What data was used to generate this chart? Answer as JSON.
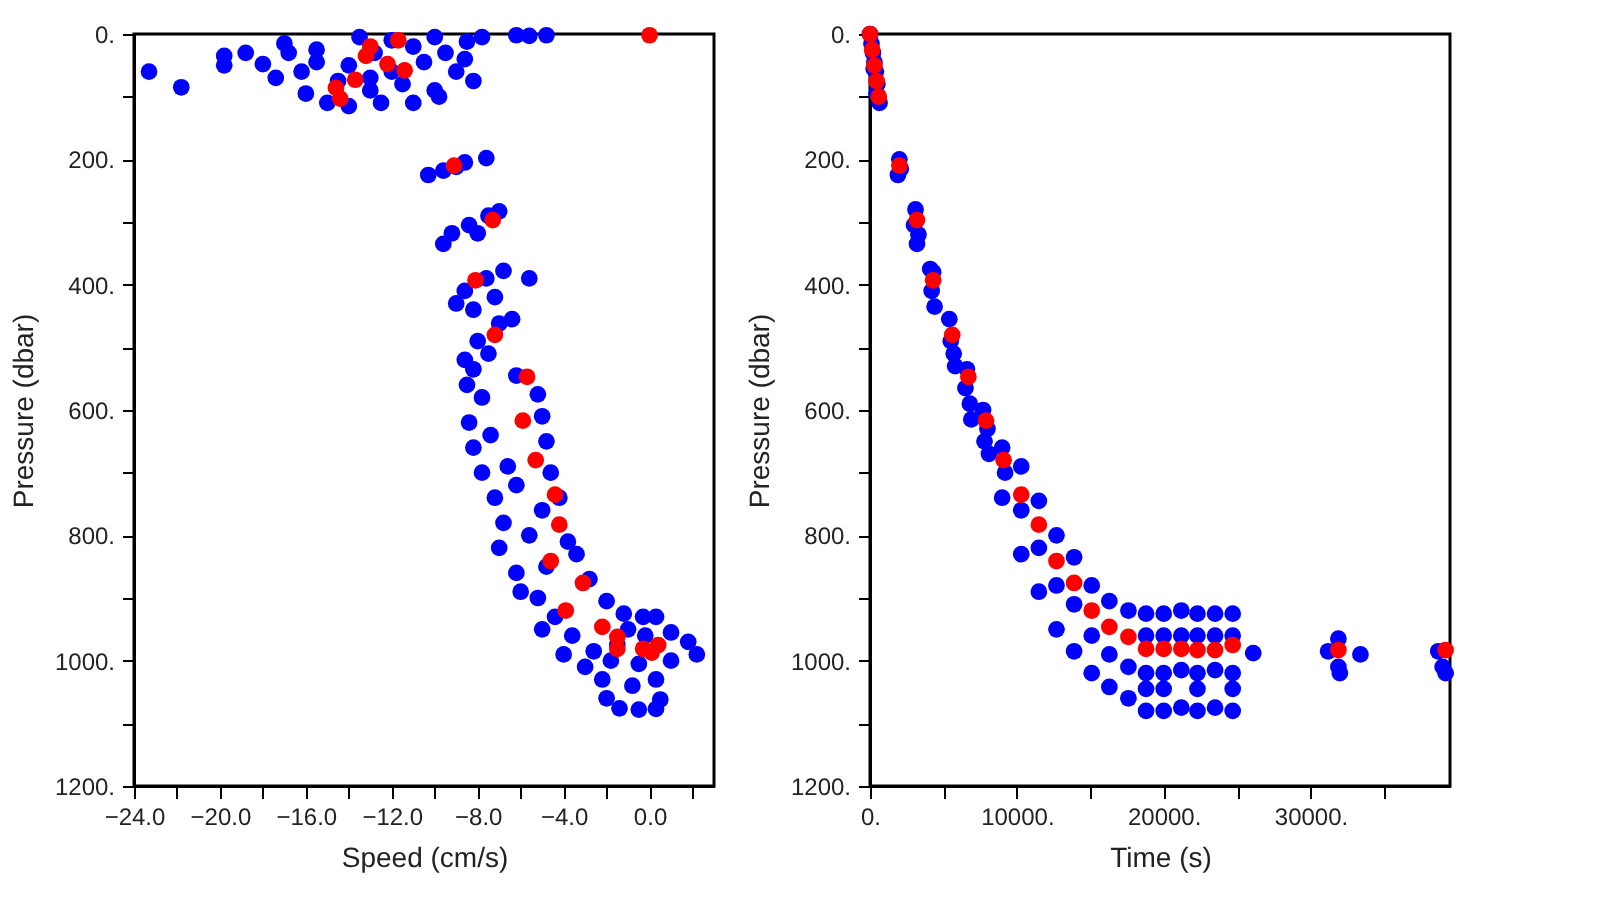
{
  "chart_data": [
    {
      "type": "scatter",
      "xlabel": "Speed (cm/s)",
      "ylabel": "Pressure (dbar)",
      "marker": "circle",
      "xlim": [
        -24,
        3
      ],
      "xticks": [
        {
          "value": -24,
          "label": "−24.0"
        },
        {
          "value": -22,
          "label": null
        },
        {
          "value": -20,
          "label": "−20.0"
        },
        {
          "value": -18,
          "label": null
        },
        {
          "value": -16,
          "label": "−16.0"
        },
        {
          "value": -14,
          "label": null
        },
        {
          "value": -12,
          "label": "−12.0"
        },
        {
          "value": -10,
          "label": null
        },
        {
          "value": -8,
          "label": "−8.0"
        },
        {
          "value": -6,
          "label": null
        },
        {
          "value": -4,
          "label": "−4.0"
        },
        {
          "value": -2,
          "label": null
        },
        {
          "value": 0,
          "label": "0.0"
        },
        {
          "value": 2,
          "label": null
        }
      ],
      "ylim": [
        1200,
        0
      ],
      "yticks": [
        {
          "value": 0,
          "label": "0."
        },
        {
          "value": 100,
          "label": null
        },
        {
          "value": 200,
          "label": "200."
        },
        {
          "value": 300,
          "label": null
        },
        {
          "value": 400,
          "label": "400."
        },
        {
          "value": 500,
          "label": null
        },
        {
          "value": 600,
          "label": "600."
        },
        {
          "value": 700,
          "label": null
        },
        {
          "value": 800,
          "label": "800."
        },
        {
          "value": 900,
          "label": null
        },
        {
          "value": 1000,
          "label": "1000."
        },
        {
          "value": 1100,
          "label": null
        },
        {
          "value": 1200,
          "label": "1200."
        }
      ],
      "series": [
        {
          "color": "#0000ff",
          "x": [
            -23.3,
            -21.8,
            -19.8,
            -19.8,
            -18.8,
            -18,
            -17.4,
            -17,
            -16.8,
            -16,
            -16.2,
            -15.5,
            -15,
            -14.5,
            -14,
            -14,
            -13.5,
            -13,
            -12.8,
            -12.5,
            -12,
            -11.5,
            -11,
            -11,
            -10.5,
            -10,
            -10,
            -9.5,
            -9,
            -8.5,
            -8.2,
            -9.8,
            -7.8,
            -8.6,
            -6.2,
            -5.6,
            -4.8,
            -13,
            -15.5,
            -12,
            -10.3,
            -9.6,
            -8.6,
            -7.6,
            -9,
            -9.6,
            -9.2,
            -8.4,
            -7.5,
            -7,
            -8,
            -9,
            -8.6,
            -7.6,
            -6.8,
            -7.2,
            -5.6,
            -8.2,
            -8.6,
            -8,
            -7,
            -6.4,
            -7.5,
            -8.2,
            -8.5,
            -6.2,
            -7.8,
            -5.2,
            -8.4,
            -5,
            -7.4,
            -8.2,
            -4.8,
            -6.6,
            -7.8,
            -4.6,
            -6.2,
            -7.2,
            -5,
            -4.2,
            -6.8,
            -5.6,
            -3.8,
            -7,
            -6.2,
            -4.8,
            -3.4,
            -6,
            -5.2,
            -2.8,
            -4.4,
            -2,
            -5,
            -3.6,
            -1.2,
            -0.3,
            0.3,
            -2.6,
            -4,
            -1,
            1,
            1.8,
            2.2,
            -3,
            -1.8,
            -0.5,
            1,
            -2.2,
            -0.8,
            0.3,
            -2,
            -1.4,
            -0.5,
            0.3,
            0.5,
            -0.2,
            -1.5
          ],
          "values": [
            60,
            85,
            35,
            50,
            30,
            48,
            70,
            15,
            30,
            95,
            60,
            25,
            110,
            75,
            50,
            115,
            5,
            90,
            30,
            110,
            60,
            80,
            20,
            110,
            45,
            5,
            90,
            30,
            60,
            12,
            75,
            100,
            5,
            40,
            2,
            3,
            2,
            70,
            45,
            10,
            225,
            218,
            205,
            198,
            212,
            335,
            318,
            305,
            290,
            283,
            318,
            430,
            410,
            390,
            378,
            420,
            390,
            440,
            520,
            490,
            462,
            455,
            510,
            535,
            560,
            545,
            580,
            575,
            620,
            610,
            640,
            660,
            650,
            690,
            700,
            700,
            720,
            740,
            760,
            740,
            780,
            800,
            810,
            820,
            860,
            850,
            830,
            890,
            900,
            870,
            930,
            905,
            950,
            960,
            925,
            930,
            930,
            985,
            990,
            950,
            955,
            970,
            990,
            1010,
            1000,
            1005,
            1000,
            1030,
            1040,
            1030,
            1060,
            1076,
            1078,
            1077,
            1062,
            960,
            975
          ]
        },
        {
          "color": "#ff0000",
          "x": [
            0,
            -11.7,
            -13,
            -13.2,
            -12.2,
            -11.4,
            -13.7,
            -14.6,
            -14.4,
            -9.1,
            -7.3,
            -8.1,
            -7.2,
            -5.7,
            -5.9,
            -5.3,
            -4.4,
            -4.2,
            -4.6,
            -3.1,
            -3.9,
            -2.2,
            -1.5,
            -1.5,
            -0.3,
            0.4,
            0.1
          ],
          "values": [
            2,
            10,
            20,
            35,
            48,
            58,
            73,
            86,
            103,
            210,
            297,
            393,
            480,
            547,
            617,
            680,
            735,
            783,
            841,
            876,
            920,
            946,
            962,
            981,
            981,
            975,
            987
          ]
        }
      ]
    },
    {
      "type": "scatter",
      "xlabel": "Time (s)",
      "ylabel": "Pressure (dbar)",
      "marker": "circle",
      "xlim": [
        0,
        39500
      ],
      "xticks": [
        {
          "value": 0,
          "label": "0."
        },
        {
          "value": 5000,
          "label": null
        },
        {
          "value": 10000,
          "label": "10000."
        },
        {
          "value": 15000,
          "label": null
        },
        {
          "value": 20000,
          "label": "20000."
        },
        {
          "value": 25000,
          "label": null
        },
        {
          "value": 30000,
          "label": "30000."
        },
        {
          "value": 35000,
          "label": null
        }
      ],
      "ylim": [
        1200,
        0
      ],
      "yticks": [
        {
          "value": 0,
          "label": "0."
        },
        {
          "value": 100,
          "label": null
        },
        {
          "value": 200,
          "label": "200."
        },
        {
          "value": 300,
          "label": null
        },
        {
          "value": 400,
          "label": "400."
        },
        {
          "value": 500,
          "label": null
        },
        {
          "value": 600,
          "label": "600."
        },
        {
          "value": 700,
          "label": null
        },
        {
          "value": 800,
          "label": "800."
        },
        {
          "value": 900,
          "label": null
        },
        {
          "value": 1000,
          "label": "1000."
        },
        {
          "value": 1100,
          "label": null
        },
        {
          "value": 1200,
          "label": "1200."
        }
      ],
      "series": [
        {
          "color": "#0000ff",
          "x": [
            0,
            100,
            200,
            300,
            400,
            500,
            650,
            250,
            450,
            2000,
            1900,
            2100,
            3100,
            3000,
            3300,
            3200,
            4100,
            4300,
            4200,
            4400,
            5400,
            5500,
            5700,
            5800,
            6600,
            6500,
            6800,
            6900,
            7700,
            8000,
            7800,
            8100,
            9000,
            9200,
            9000,
            10300,
            10300,
            10300,
            11500,
            11500,
            11500,
            12700,
            12700,
            12700,
            13900,
            13900,
            13900,
            15100,
            15100,
            15100,
            16300,
            16300,
            16300,
            17600,
            17600,
            17600,
            18800,
            18800,
            18800,
            20000,
            20000,
            20000,
            21200,
            21200,
            21200,
            22300,
            22300,
            22300,
            23500,
            23500,
            23500,
            24700,
            24700,
            24700,
            18800,
            20000,
            21200,
            22300,
            23500,
            24700,
            18800,
            20000,
            22300,
            24700,
            26100,
            31200,
            31900,
            31900,
            32000,
            33400,
            38700,
            39000,
            39200
          ],
          "values": [
            0,
            15,
            30,
            45,
            60,
            80,
            110,
            55,
            95,
            200,
            225,
            215,
            280,
            305,
            320,
            335,
            375,
            380,
            410,
            435,
            455,
            490,
            510,
            530,
            535,
            565,
            590,
            615,
            600,
            630,
            650,
            670,
            660,
            700,
            740,
            690,
            760,
            830,
            745,
            820,
            890,
            800,
            880,
            950,
            835,
            910,
            985,
            880,
            960,
            1020,
            905,
            990,
            1042,
            920,
            1010,
            1060,
            925,
            1020,
            1080,
            925,
            1020,
            1080,
            920,
            1015,
            1075,
            925,
            1020,
            1080,
            925,
            1015,
            1075,
            925,
            1020,
            1080,
            960,
            960,
            960,
            960,
            960,
            960,
            1045,
            1045,
            1045,
            1045,
            988,
            985,
            965,
            1010,
            1020,
            990,
            985,
            1010,
            1020
          ]
        },
        {
          "color": "#ff0000",
          "x": [
            0,
            150,
            300,
            450,
            600,
            2000,
            3200,
            4300,
            5600,
            6700,
            7900,
            9100,
            10300,
            11500,
            12700,
            13900,
            15100,
            16300,
            17600,
            18800,
            20000,
            21200,
            22300,
            23500,
            24700,
            31900,
            39200
          ],
          "values": [
            0,
            25,
            50,
            75,
            100,
            210,
            297,
            393,
            480,
            547,
            617,
            680,
            735,
            783,
            841,
            876,
            920,
            946,
            962,
            981,
            981,
            981,
            983,
            983,
            975,
            983,
            983
          ]
        }
      ]
    }
  ]
}
